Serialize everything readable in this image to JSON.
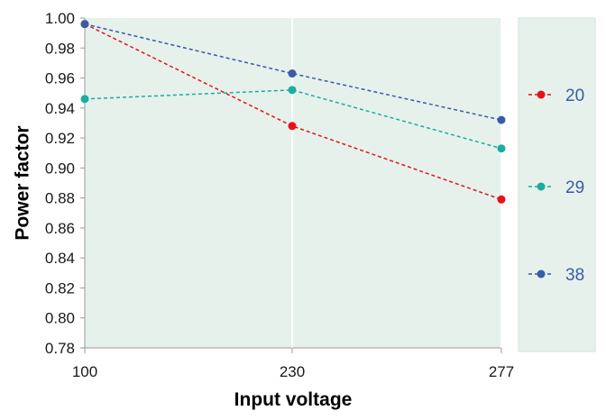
{
  "chart_data": {
    "type": "line",
    "title": "",
    "xlabel": "Input voltage",
    "ylabel": "Power factor",
    "x_categories": [
      "100",
      "230",
      "277"
    ],
    "y_ticks": [
      "0.78",
      "0.80",
      "0.82",
      "0.84",
      "0.86",
      "0.88",
      "0.90",
      "0.92",
      "0.94",
      "0.96",
      "0.98",
      "1.00"
    ],
    "ylim": [
      0.78,
      1.0
    ],
    "grid": false,
    "legend_position": "right",
    "series": [
      {
        "name": "20",
        "color": "#e8111a",
        "values": [
          0.996,
          0.928,
          0.879
        ]
      },
      {
        "name": "29",
        "color": "#1aada0",
        "values": [
          0.946,
          0.952,
          0.913
        ]
      },
      {
        "name": "38",
        "color": "#3a5ba8",
        "values": [
          0.996,
          0.963,
          0.932
        ]
      }
    ],
    "plot_background": "#e6f1ec",
    "legend_background": "#e6f1ec",
    "legend_label_color": "#3a5ba8"
  }
}
